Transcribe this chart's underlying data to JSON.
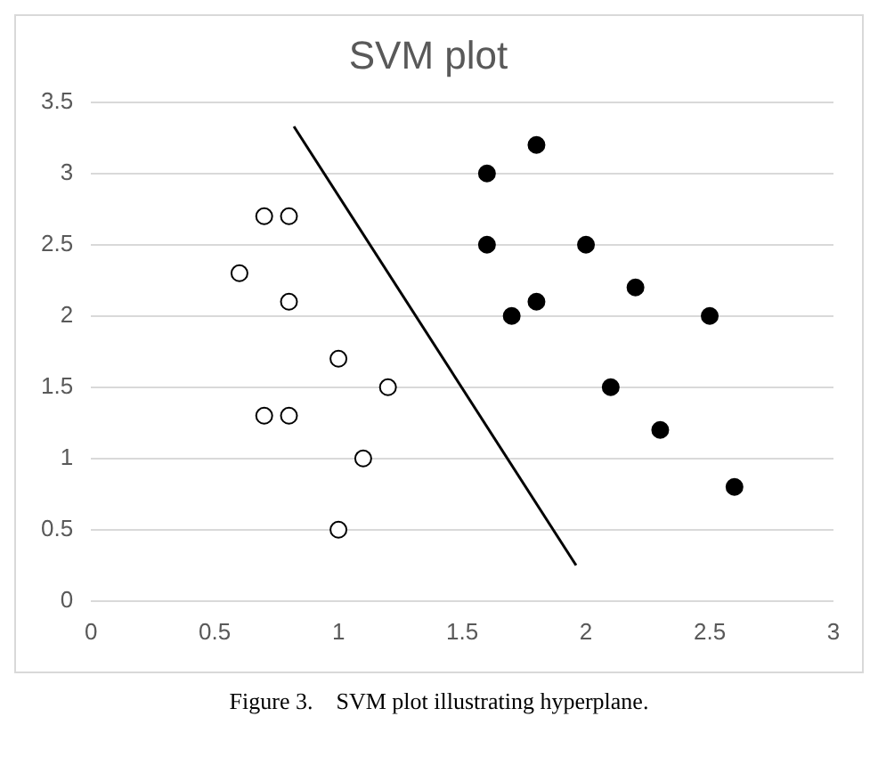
{
  "chart_data": {
    "type": "scatter",
    "title": "SVM plot",
    "xlim": [
      0,
      3
    ],
    "xticks": [
      0,
      0.5,
      1,
      1.5,
      2,
      2.5,
      3
    ],
    "ylim": [
      0,
      3.5
    ],
    "yticks": [
      0,
      0.5,
      1,
      1.5,
      2,
      2.5,
      3,
      3.5
    ],
    "grid": "y",
    "legend": false,
    "marker": "circle",
    "series": [
      {
        "color": "#ffffff",
        "x": [
          0.7,
          0.8,
          0.6,
          0.8,
          1.0,
          1.2,
          0.7,
          0.8,
          1.1,
          1.0
        ],
        "values": [
          2.7,
          2.7,
          2.3,
          2.1,
          1.7,
          1.5,
          1.3,
          1.3,
          1.0,
          0.5
        ]
      },
      {
        "color": "#000000",
        "x": [
          1.6,
          1.8,
          1.6,
          2.0,
          2.2,
          1.7,
          1.8,
          2.5,
          2.1,
          2.3,
          2.6
        ],
        "values": [
          3.0,
          3.2,
          2.5,
          2.5,
          2.2,
          2.0,
          2.1,
          2.0,
          1.5,
          1.2,
          0.8
        ]
      },
      {
        "type": "line",
        "marker": "none",
        "color": "#000000",
        "x": [
          0.82,
          1.96
        ],
        "values": [
          3.33,
          0.25
        ]
      }
    ],
    "annotations": [
      "Figure 3.    SVM plot illustrating hyperplane."
    ]
  }
}
